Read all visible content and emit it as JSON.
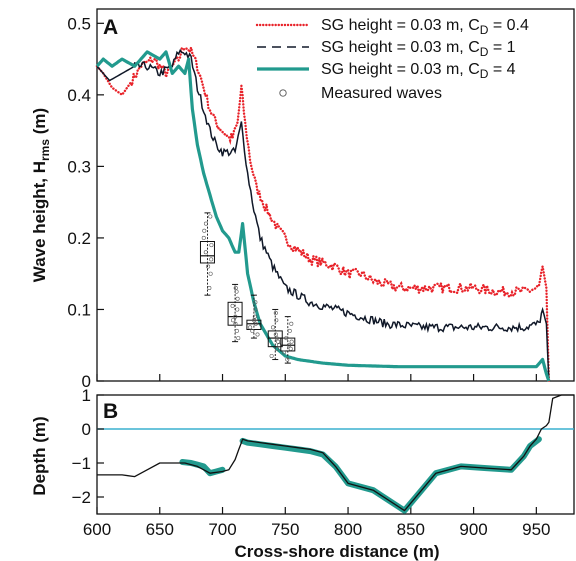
{
  "chart_data": [
    {
      "panel": "A",
      "type": "line",
      "xlabel": "Cross-shore distance (m)",
      "ylabel_main": "Wave height, H",
      "ylabel_sub": "rms",
      "ylabel_unit": " (m)",
      "xlim": [
        600,
        980
      ],
      "ylim": [
        0,
        0.52
      ],
      "xticks": [
        600,
        650,
        700,
        750,
        800,
        850,
        900,
        950
      ],
      "yticks": [
        0,
        0.1,
        0.2,
        0.3,
        0.4,
        0.5
      ],
      "ytick_labels": [
        "0",
        "0.1",
        "0.2",
        "0.3",
        "0.4",
        "0.5"
      ],
      "legend_position": "top-right",
      "series": [
        {
          "name_main": "SG height = 0.03 m, C",
          "name_sub": "D",
          "name_tail": " = 0.4",
          "color": "#e8232a",
          "style": "dotted",
          "noise": 0.007,
          "x": [
            600,
            605,
            612,
            620,
            628,
            635,
            645,
            655,
            660,
            665,
            670,
            675,
            680,
            685,
            690,
            695,
            700,
            705,
            708,
            712,
            715,
            718,
            722,
            727,
            735,
            745,
            755,
            770,
            790,
            800,
            810,
            820,
            840,
            860,
            880,
            900,
            920,
            940,
            952,
            955,
            958,
            960
          ],
          "y": [
            0.44,
            0.43,
            0.41,
            0.4,
            0.42,
            0.44,
            0.45,
            0.43,
            0.44,
            0.45,
            0.47,
            0.46,
            0.44,
            0.41,
            0.38,
            0.36,
            0.35,
            0.34,
            0.34,
            0.36,
            0.41,
            0.36,
            0.31,
            0.27,
            0.24,
            0.21,
            0.19,
            0.17,
            0.16,
            0.15,
            0.15,
            0.14,
            0.13,
            0.13,
            0.13,
            0.13,
            0.125,
            0.125,
            0.13,
            0.16,
            0.13,
            0.0
          ]
        },
        {
          "name_main": "SG height = 0.03 m, C",
          "name_sub": "D",
          "name_tail": " = 1",
          "color": "#101828",
          "style": "dashed",
          "noise": 0.006,
          "x": [
            600,
            610,
            620,
            630,
            640,
            650,
            660,
            665,
            670,
            675,
            680,
            685,
            690,
            695,
            700,
            705,
            710,
            715,
            720,
            725,
            730,
            740,
            750,
            770,
            790,
            810,
            830,
            860,
            900,
            940,
            952,
            955,
            958,
            960
          ],
          "y": [
            0.44,
            0.42,
            0.43,
            0.44,
            0.44,
            0.43,
            0.44,
            0.46,
            0.46,
            0.45,
            0.41,
            0.38,
            0.35,
            0.33,
            0.32,
            0.32,
            0.32,
            0.36,
            0.29,
            0.24,
            0.2,
            0.16,
            0.13,
            0.11,
            0.1,
            0.09,
            0.08,
            0.075,
            0.075,
            0.075,
            0.08,
            0.1,
            0.08,
            0.0
          ]
        },
        {
          "name_main": "SG height = 0.03 m, C",
          "name_sub": "D",
          "name_tail": " = 4",
          "color": "#229a8e",
          "style": "solid",
          "noise": 0.0,
          "x": [
            600,
            605,
            612,
            620,
            630,
            640,
            650,
            655,
            660,
            665,
            670,
            673,
            676,
            680,
            685,
            690,
            695,
            700,
            705,
            710,
            713,
            716,
            720,
            725,
            730,
            740,
            750,
            760,
            780,
            800,
            840,
            900,
            950,
            955,
            958,
            960
          ],
          "y": [
            0.44,
            0.45,
            0.44,
            0.45,
            0.44,
            0.46,
            0.45,
            0.46,
            0.43,
            0.44,
            0.43,
            0.45,
            0.38,
            0.33,
            0.29,
            0.26,
            0.23,
            0.21,
            0.2,
            0.18,
            0.18,
            0.22,
            0.15,
            0.11,
            0.08,
            0.05,
            0.035,
            0.03,
            0.025,
            0.022,
            0.02,
            0.02,
            0.02,
            0.03,
            0.01,
            0.0
          ]
        }
      ],
      "measured": {
        "name": "Measured waves",
        "x": [
          688,
          710,
          725,
          742,
          752
        ],
        "median": [
          0.175,
          0.09,
          0.08,
          0.06,
          0.05
        ],
        "q1": [
          0.165,
          0.078,
          0.072,
          0.048,
          0.042
        ],
        "q3": [
          0.195,
          0.11,
          0.085,
          0.07,
          0.06
        ],
        "min": [
          0.12,
          0.055,
          0.06,
          0.03,
          0.025
        ],
        "max": [
          0.235,
          0.135,
          0.12,
          0.1,
          0.09
        ],
        "scatter": [
          [
            0.13,
            0.15,
            0.16,
            0.17,
            0.18,
            0.19,
            0.2,
            0.21,
            0.22,
            0.23
          ],
          [
            0.06,
            0.07,
            0.08,
            0.085,
            0.09,
            0.1,
            0.105,
            0.115,
            0.125,
            0.13
          ],
          [
            0.065,
            0.07,
            0.075,
            0.08,
            0.085,
            0.09,
            0.1,
            0.11
          ],
          [
            0.035,
            0.045,
            0.05,
            0.055,
            0.06,
            0.065,
            0.075,
            0.085,
            0.095
          ],
          [
            0.03,
            0.04,
            0.045,
            0.05,
            0.055,
            0.06,
            0.07,
            0.08
          ]
        ]
      }
    },
    {
      "panel": "B",
      "type": "line",
      "xlabel": "Cross-shore distance (m)",
      "ylabel": "Depth (m)",
      "xlim": [
        600,
        980
      ],
      "ylim": [
        -2.5,
        1.0
      ],
      "yticks": [
        -2,
        -1,
        0,
        1
      ],
      "ytick_labels": [
        "−2",
        "−1",
        "0",
        "1"
      ],
      "zero_line_color": "#3ab0cf",
      "seagrass_color": "#229a8e",
      "profile": {
        "x": [
          600,
          610,
          620,
          630,
          640,
          650,
          660,
          670,
          680,
          690,
          700,
          705,
          710,
          713,
          715,
          716,
          720,
          730,
          740,
          750,
          760,
          770,
          780,
          790,
          800,
          820,
          845,
          870,
          890,
          910,
          930,
          935,
          940,
          945,
          950,
          954,
          958,
          960,
          963,
          970,
          980
        ],
        "y": [
          -1.35,
          -1.35,
          -1.35,
          -1.4,
          -1.2,
          -1.0,
          -1.0,
          -1.0,
          -1.1,
          -1.3,
          -1.25,
          -1.2,
          -0.9,
          -0.6,
          -0.4,
          -0.3,
          -0.35,
          -0.4,
          -0.45,
          -0.5,
          -0.55,
          -0.6,
          -0.7,
          -1.1,
          -1.6,
          -1.8,
          -2.4,
          -1.3,
          -1.1,
          -1.15,
          -1.2,
          -1.0,
          -0.8,
          -0.5,
          -0.3,
          0.0,
          0.1,
          0.2,
          0.9,
          1.0,
          1.0
        ]
      },
      "seagrass_segments": [
        {
          "x": [
            668,
            675,
            680,
            685,
            690,
            695,
            700
          ],
          "y": [
            -0.97,
            -1.0,
            -1.05,
            -1.1,
            -1.3,
            -1.25,
            -1.2
          ]
        },
        {
          "x": [
            716,
            720,
            730,
            740,
            750,
            760,
            770,
            780,
            790,
            800,
            820,
            845,
            870,
            890,
            910,
            930,
            935,
            940,
            945,
            952
          ],
          "y": [
            -0.35,
            -0.4,
            -0.45,
            -0.5,
            -0.55,
            -0.6,
            -0.65,
            -0.75,
            -1.1,
            -1.6,
            -1.8,
            -2.4,
            -1.3,
            -1.1,
            -1.15,
            -1.2,
            -1.0,
            -0.8,
            -0.5,
            -0.3
          ]
        }
      ]
    }
  ]
}
